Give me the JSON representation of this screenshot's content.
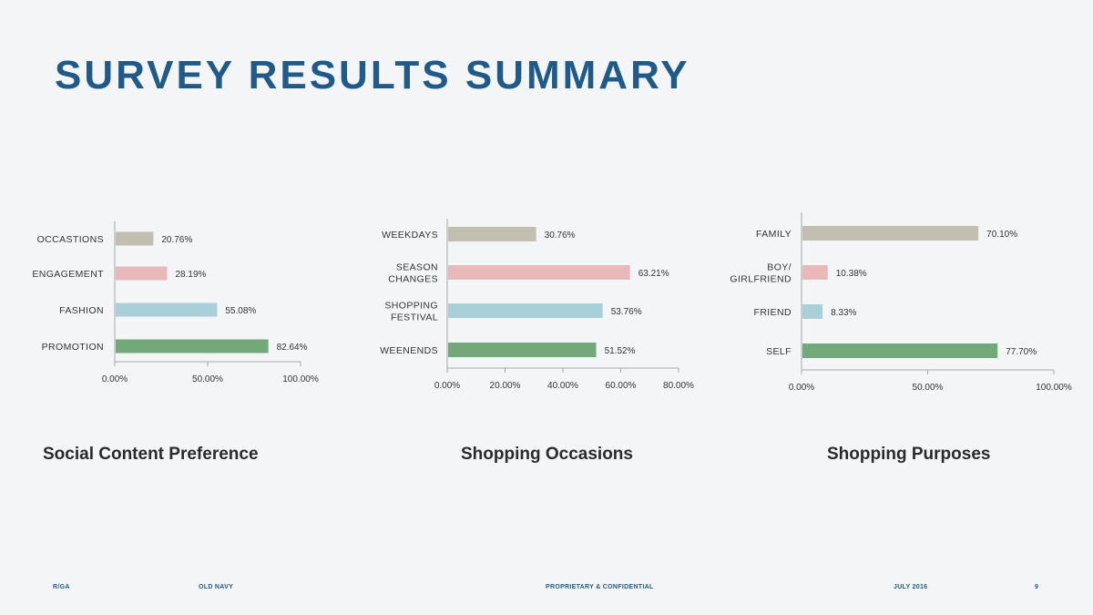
{
  "page": {
    "title": "SURVEY RESULTS SUMMARY"
  },
  "footer": {
    "agency": "R/GA",
    "client": "OLD NAVY",
    "confidentiality": "PROPRIETARY & CONFIDENTIAL",
    "date": "JULY 2016",
    "page_number": "9"
  },
  "colors": {
    "title": "#1f5a8a",
    "bar_gray": "#c3bfb0",
    "bar_pink": "#e9b9ba",
    "bar_blue": "#a9d0d8",
    "bar_green": "#73a97a",
    "axis": "#a8a8a8"
  },
  "chart_data": [
    {
      "type": "bar",
      "orientation": "horizontal",
      "title": "Social Content Preference",
      "categories": [
        [
          "OCCASTIONS"
        ],
        [
          "ENGAGEMENT"
        ],
        [
          "FASHION"
        ],
        [
          "PROMOTION"
        ]
      ],
      "values": [
        20.76,
        28.19,
        55.08,
        82.64
      ],
      "value_labels": [
        "20.76%",
        "28.19%",
        "55.08%",
        "82.64%"
      ],
      "bar_colors": [
        "#c3bfb0",
        "#e9b9ba",
        "#a9d0d8",
        "#73a97a"
      ],
      "xlim": [
        0,
        100
      ],
      "ticks": [
        0,
        50,
        100
      ],
      "tick_labels": [
        "0.00%",
        "50.00%",
        "100.00%"
      ],
      "xlabel": "",
      "ylabel": "",
      "grid": false
    },
    {
      "type": "bar",
      "orientation": "horizontal",
      "title": "Shopping Occasions",
      "categories": [
        [
          "WEEKDAYS"
        ],
        [
          "SEASON",
          "CHANGES"
        ],
        [
          "SHOPPING",
          "FESTIVAL"
        ],
        [
          "WEENENDS"
        ]
      ],
      "values": [
        30.76,
        63.21,
        53.76,
        51.52
      ],
      "value_labels": [
        "30.76%",
        "63.21%",
        "53.76%",
        "51.52%"
      ],
      "bar_colors": [
        "#c3bfb0",
        "#e9b9ba",
        "#a9d0d8",
        "#73a97a"
      ],
      "xlim": [
        0,
        80
      ],
      "ticks": [
        0,
        20,
        40,
        60,
        80
      ],
      "tick_labels": [
        "0.00%",
        "20.00%",
        "40.00%",
        "60.00%",
        "80.00%"
      ],
      "xlabel": "",
      "ylabel": "",
      "grid": false
    },
    {
      "type": "bar",
      "orientation": "horizontal",
      "title": "Shopping Purposes",
      "categories": [
        [
          "FAMILY"
        ],
        [
          "BOY/",
          "GIRLFRIEND"
        ],
        [
          "FRIEND"
        ],
        [
          "SELF"
        ]
      ],
      "values": [
        70.1,
        10.38,
        8.33,
        77.7
      ],
      "value_labels": [
        "70.10%",
        "10.38%",
        "8.33%",
        "77.70%"
      ],
      "bar_colors": [
        "#c3bfb0",
        "#e9b9ba",
        "#a9d0d8",
        "#73a97a"
      ],
      "xlim": [
        0,
        100
      ],
      "ticks": [
        0,
        50,
        100
      ],
      "tick_labels": [
        "0.00%",
        "50.00%",
        "100.00%"
      ],
      "xlabel": "",
      "ylabel": "",
      "grid": false
    }
  ]
}
